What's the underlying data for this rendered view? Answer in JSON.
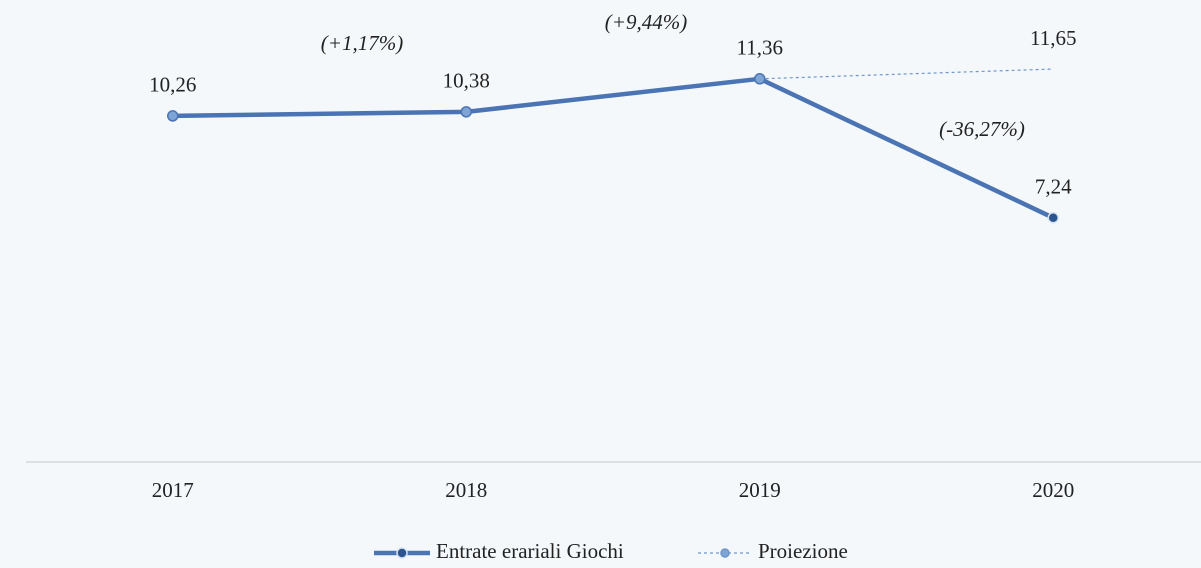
{
  "chart_data": {
    "type": "line",
    "categories": [
      "2017",
      "2018",
      "2019",
      "2020"
    ],
    "series": [
      {
        "name": "Entrate erariali Giochi",
        "color": "#4a74b4",
        "values": [
          10.26,
          10.38,
          11.36,
          7.24
        ],
        "value_labels": [
          "10,26",
          "10,38",
          "11,36",
          "7,24"
        ],
        "line_style": "solid"
      },
      {
        "name": "Proiezione",
        "color": "#6e96cc",
        "values": [
          null,
          null,
          11.36,
          11.65
        ],
        "value_labels": [
          null,
          null,
          null,
          "11,65"
        ],
        "line_style": "dashed"
      }
    ],
    "annotations": [
      "(+1,17%)",
      "(+9,44%)",
      "(-36,27%)"
    ],
    "ylim": [
      0,
      13.4
    ],
    "legend": "bottom"
  }
}
